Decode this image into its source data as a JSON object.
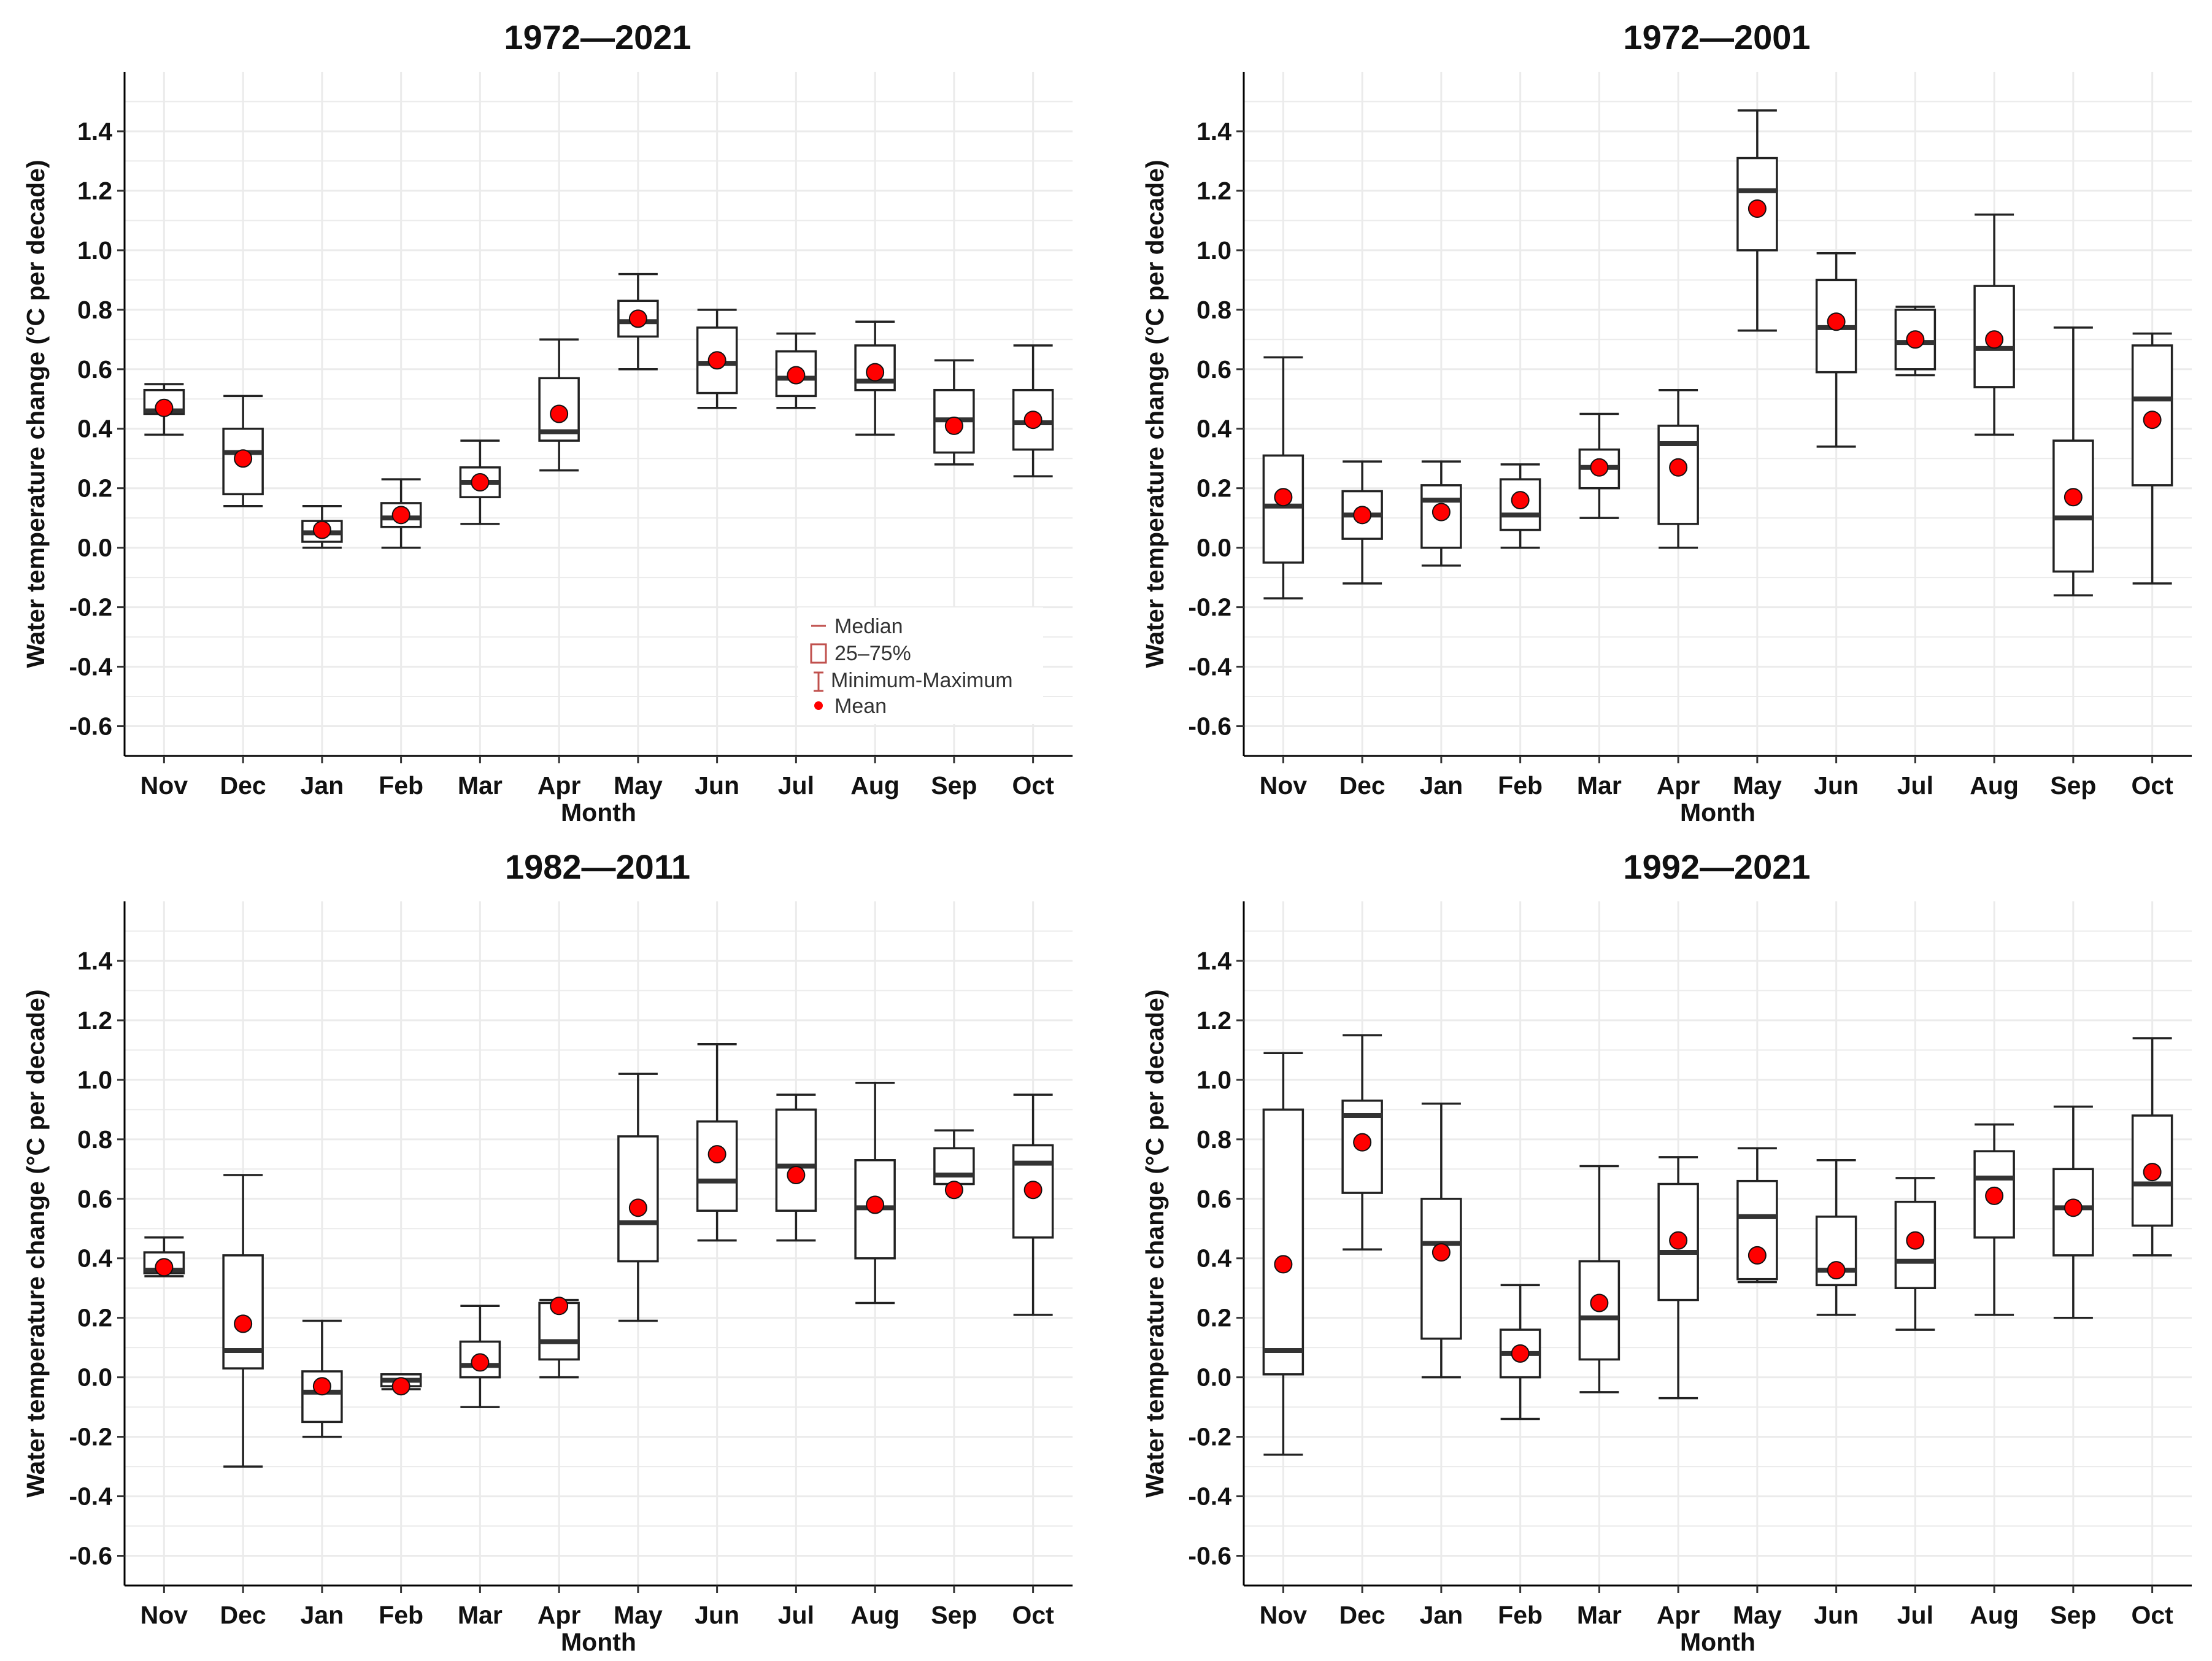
{
  "chart_data": [
    {
      "type": "box",
      "title": "1972—2021",
      "xlabel": "Month",
      "ylabel": "Water temperature change (°C per decade)",
      "ylim": [
        -0.7,
        1.6
      ],
      "yticks": [
        "-0.6",
        "-0.4",
        "-0.2",
        "0.0",
        "0.2",
        "0.4",
        "0.6",
        "0.8",
        "1.0",
        "1.2",
        "1.4"
      ],
      "grid": true,
      "categories": [
        "Nov",
        "Dec",
        "Jan",
        "Feb",
        "Mar",
        "Apr",
        "May",
        "Jun",
        "Jul",
        "Aug",
        "Sep",
        "Oct"
      ],
      "series": [
        {
          "min": 0.38,
          "q1": 0.45,
          "median": 0.46,
          "q3": 0.53,
          "max": 0.55,
          "mean": 0.47
        },
        {
          "min": 0.14,
          "q1": 0.18,
          "median": 0.32,
          "q3": 0.4,
          "max": 0.51,
          "mean": 0.3
        },
        {
          "min": 0.0,
          "q1": 0.02,
          "median": 0.05,
          "q3": 0.09,
          "max": 0.14,
          "mean": 0.06
        },
        {
          "min": 0.0,
          "q1": 0.07,
          "median": 0.1,
          "q3": 0.15,
          "max": 0.23,
          "mean": 0.11
        },
        {
          "min": 0.08,
          "q1": 0.17,
          "median": 0.22,
          "q3": 0.27,
          "max": 0.36,
          "mean": 0.22
        },
        {
          "min": 0.26,
          "q1": 0.36,
          "median": 0.39,
          "q3": 0.57,
          "max": 0.7,
          "mean": 0.45
        },
        {
          "min": 0.6,
          "q1": 0.71,
          "median": 0.76,
          "q3": 0.83,
          "max": 0.92,
          "mean": 0.77
        },
        {
          "min": 0.47,
          "q1": 0.52,
          "median": 0.62,
          "q3": 0.74,
          "max": 0.8,
          "mean": 0.63
        },
        {
          "min": 0.47,
          "q1": 0.51,
          "median": 0.57,
          "q3": 0.66,
          "max": 0.72,
          "mean": 0.58
        },
        {
          "min": 0.38,
          "q1": 0.53,
          "median": 0.56,
          "q3": 0.68,
          "max": 0.76,
          "mean": 0.59
        },
        {
          "min": 0.28,
          "q1": 0.32,
          "median": 0.43,
          "q3": 0.53,
          "max": 0.63,
          "mean": 0.41
        },
        {
          "min": 0.24,
          "q1": 0.33,
          "median": 0.42,
          "q3": 0.53,
          "max": 0.68,
          "mean": 0.43
        }
      ],
      "legend": {
        "placement": "bottom-right",
        "items": [
          "Median",
          "25–75%",
          "Minimum-Maximum",
          "Mean"
        ]
      }
    },
    {
      "type": "box",
      "title": "1972—2001",
      "xlabel": "Month",
      "ylabel": "Water temperature change (°C per decade)",
      "ylim": [
        -0.7,
        1.6
      ],
      "yticks": [
        "-0.6",
        "-0.4",
        "-0.2",
        "0.0",
        "0.2",
        "0.4",
        "0.6",
        "0.8",
        "1.0",
        "1.2",
        "1.4"
      ],
      "grid": true,
      "categories": [
        "Nov",
        "Dec",
        "Jan",
        "Feb",
        "Mar",
        "Apr",
        "May",
        "Jun",
        "Jul",
        "Aug",
        "Sep",
        "Oct"
      ],
      "series": [
        {
          "min": -0.17,
          "q1": -0.05,
          "median": 0.14,
          "q3": 0.31,
          "max": 0.64,
          "mean": 0.17
        },
        {
          "min": -0.12,
          "q1": 0.03,
          "median": 0.11,
          "q3": 0.19,
          "max": 0.29,
          "mean": 0.11
        },
        {
          "min": -0.06,
          "q1": 0.0,
          "median": 0.16,
          "q3": 0.21,
          "max": 0.29,
          "mean": 0.12
        },
        {
          "min": 0.0,
          "q1": 0.06,
          "median": 0.11,
          "q3": 0.23,
          "max": 0.28,
          "mean": 0.16
        },
        {
          "min": 0.1,
          "q1": 0.2,
          "median": 0.27,
          "q3": 0.33,
          "max": 0.45,
          "mean": 0.27
        },
        {
          "min": 0.0,
          "q1": 0.08,
          "median": 0.35,
          "q3": 0.41,
          "max": 0.53,
          "mean": 0.27
        },
        {
          "min": 0.73,
          "q1": 1.0,
          "median": 1.2,
          "q3": 1.31,
          "max": 1.47,
          "mean": 1.14
        },
        {
          "min": 0.34,
          "q1": 0.59,
          "median": 0.74,
          "q3": 0.9,
          "max": 0.99,
          "mean": 0.76
        },
        {
          "min": 0.58,
          "q1": 0.6,
          "median": 0.69,
          "q3": 0.8,
          "max": 0.81,
          "mean": 0.7
        },
        {
          "min": 0.38,
          "q1": 0.54,
          "median": 0.67,
          "q3": 0.88,
          "max": 1.12,
          "mean": 0.7
        },
        {
          "min": -0.16,
          "q1": -0.08,
          "median": 0.1,
          "q3": 0.36,
          "max": 0.74,
          "mean": 0.17
        },
        {
          "min": -0.12,
          "q1": 0.21,
          "median": 0.5,
          "q3": 0.68,
          "max": 0.72,
          "mean": 0.43
        }
      ]
    },
    {
      "type": "box",
      "title": "1982—2011",
      "xlabel": "Month",
      "ylabel": "Water temperature change (°C per decade)",
      "ylim": [
        -0.7,
        1.6
      ],
      "yticks": [
        "-0.6",
        "-0.4",
        "-0.2",
        "0.0",
        "0.2",
        "0.4",
        "0.6",
        "0.8",
        "1.0",
        "1.2",
        "1.4"
      ],
      "grid": true,
      "categories": [
        "Nov",
        "Dec",
        "Jan",
        "Feb",
        "Mar",
        "Apr",
        "May",
        "Jun",
        "Jul",
        "Aug",
        "Sep",
        "Oct"
      ],
      "series": [
        {
          "min": 0.34,
          "q1": 0.35,
          "median": 0.36,
          "q3": 0.42,
          "max": 0.47,
          "mean": 0.37
        },
        {
          "min": -0.3,
          "q1": 0.03,
          "median": 0.09,
          "q3": 0.41,
          "max": 0.68,
          "mean": 0.18
        },
        {
          "min": -0.2,
          "q1": -0.15,
          "median": -0.05,
          "q3": 0.02,
          "max": 0.19,
          "mean": -0.03
        },
        {
          "min": -0.04,
          "q1": -0.03,
          "median": -0.01,
          "q3": 0.01,
          "max": 0.01,
          "mean": -0.03
        },
        {
          "min": -0.1,
          "q1": 0.0,
          "median": 0.04,
          "q3": 0.12,
          "max": 0.24,
          "mean": 0.05
        },
        {
          "min": 0.0,
          "q1": 0.06,
          "median": 0.12,
          "q3": 0.25,
          "max": 0.26,
          "mean": 0.24
        },
        {
          "min": 0.19,
          "q1": 0.39,
          "median": 0.52,
          "q3": 0.81,
          "max": 1.02,
          "mean": 0.57
        },
        {
          "min": 0.46,
          "q1": 0.56,
          "median": 0.66,
          "q3": 0.86,
          "max": 1.12,
          "mean": 0.75
        },
        {
          "min": 0.46,
          "q1": 0.56,
          "median": 0.71,
          "q3": 0.9,
          "max": 0.95,
          "mean": 0.68
        },
        {
          "min": 0.25,
          "q1": 0.4,
          "median": 0.57,
          "q3": 0.73,
          "max": 0.99,
          "mean": 0.58
        },
        {
          "min": 0.65,
          "q1": 0.65,
          "median": 0.68,
          "q3": 0.77,
          "max": 0.83,
          "mean": 0.63
        },
        {
          "min": 0.21,
          "q1": 0.47,
          "median": 0.72,
          "q3": 0.78,
          "max": 0.95,
          "mean": 0.63
        }
      ]
    },
    {
      "type": "box",
      "title": "1992—2021",
      "xlabel": "Month",
      "ylabel": "Water temperature change (°C per decade)",
      "ylim": [
        -0.7,
        1.6
      ],
      "yticks": [
        "-0.6",
        "-0.4",
        "-0.2",
        "0.0",
        "0.2",
        "0.4",
        "0.6",
        "0.8",
        "1.0",
        "1.2",
        "1.4"
      ],
      "grid": true,
      "categories": [
        "Nov",
        "Dec",
        "Jan",
        "Feb",
        "Mar",
        "Apr",
        "May",
        "Jun",
        "Jul",
        "Aug",
        "Sep",
        "Oct"
      ],
      "series": [
        {
          "min": -0.26,
          "q1": 0.01,
          "median": 0.09,
          "q3": 0.9,
          "max": 1.09,
          "mean": 0.38
        },
        {
          "min": 0.43,
          "q1": 0.62,
          "median": 0.88,
          "q3": 0.93,
          "max": 1.15,
          "mean": 0.79
        },
        {
          "min": 0.0,
          "q1": 0.13,
          "median": 0.45,
          "q3": 0.6,
          "max": 0.92,
          "mean": 0.42
        },
        {
          "min": -0.14,
          "q1": 0.0,
          "median": 0.08,
          "q3": 0.16,
          "max": 0.31,
          "mean": 0.08
        },
        {
          "min": -0.05,
          "q1": 0.06,
          "median": 0.2,
          "q3": 0.39,
          "max": 0.71,
          "mean": 0.25
        },
        {
          "min": -0.07,
          "q1": 0.26,
          "median": 0.42,
          "q3": 0.65,
          "max": 0.74,
          "mean": 0.46
        },
        {
          "min": 0.32,
          "q1": 0.33,
          "median": 0.54,
          "q3": 0.66,
          "max": 0.77,
          "mean": 0.41
        },
        {
          "min": 0.21,
          "q1": 0.31,
          "median": 0.36,
          "q3": 0.54,
          "max": 0.73,
          "mean": 0.36
        },
        {
          "min": 0.16,
          "q1": 0.3,
          "median": 0.39,
          "q3": 0.59,
          "max": 0.67,
          "mean": 0.46
        },
        {
          "min": 0.21,
          "q1": 0.47,
          "median": 0.67,
          "q3": 0.76,
          "max": 0.85,
          "mean": 0.61
        },
        {
          "min": 0.2,
          "q1": 0.41,
          "median": 0.57,
          "q3": 0.7,
          "max": 0.91,
          "mean": 0.57
        },
        {
          "min": 0.41,
          "q1": 0.51,
          "median": 0.65,
          "q3": 0.88,
          "max": 1.14,
          "mean": 0.69
        }
      ]
    }
  ]
}
